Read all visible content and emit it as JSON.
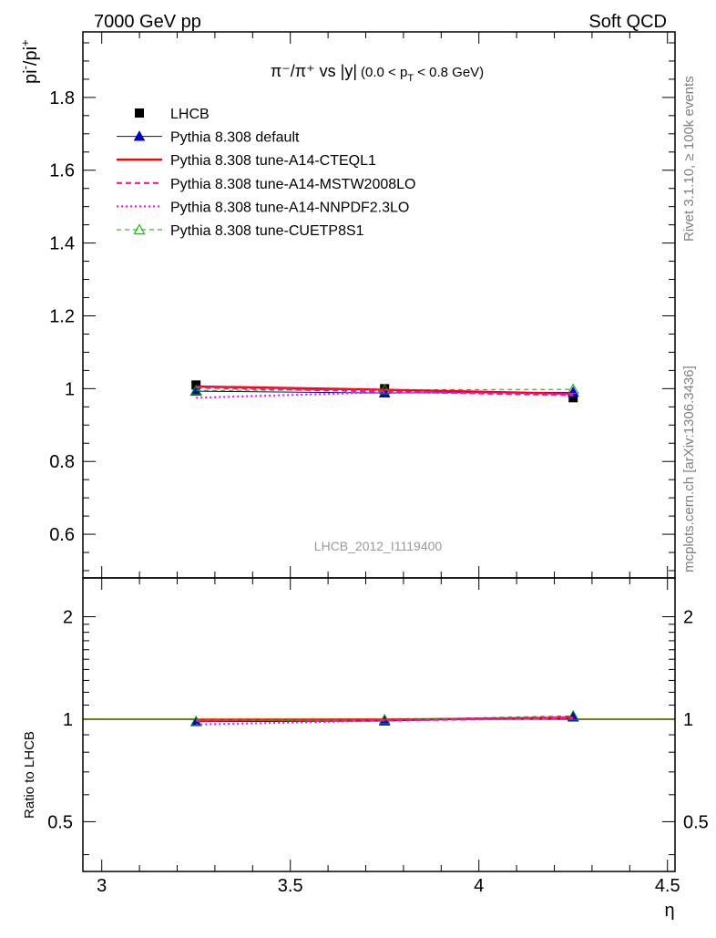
{
  "header": {
    "left": "7000 GeV pp",
    "right": "Soft QCD"
  },
  "side_labels": {
    "rivet": "Rivet 3.1.10, ≥ 100k events",
    "mcplots": "mcplots.cern.ch [arXiv:1306.3436]"
  },
  "chart_data": [
    {
      "type": "line",
      "panel": "main",
      "title": "π⁻/π⁺ vs |y|",
      "title_range": "(0.0 < p",
      "title_sub": "T",
      "title_range_end": " < 0.8 GeV)",
      "ylabel_main": "pi",
      "ylabel_sup1": "-",
      "ylabel_mid": "/pi",
      "ylabel_sup2": "+",
      "analysis_label": "LHCB_2012_I1119400",
      "xlim": [
        2.95,
        4.52
      ],
      "ylim": [
        0.48,
        1.98
      ],
      "yticks": [
        {
          "value": 0.6,
          "label": "0.6"
        },
        {
          "value": 0.8,
          "label": "0.8"
        },
        {
          "value": 1.0,
          "label": "1"
        },
        {
          "value": 1.2,
          "label": "1.2"
        },
        {
          "value": 1.4,
          "label": "1.4"
        },
        {
          "value": 1.6,
          "label": "1.6"
        },
        {
          "value": 1.8,
          "label": "1.8"
        }
      ],
      "legend_position": "top-left",
      "data": {
        "name": "LHCB",
        "x": [
          3.25,
          3.75,
          4.25
        ],
        "y": [
          1.01,
          1.0,
          0.975
        ]
      },
      "series": [
        {
          "name": "Pythia 8.308 default",
          "color": "#0000cc",
          "style": "solid",
          "width": 1,
          "marker": "triangle-filled",
          "x": [
            3.25,
            3.75,
            4.25
          ],
          "y": [
            0.993,
            0.988,
            0.99
          ]
        },
        {
          "name": "Pythia 8.308 tune-A14-CTEQL1",
          "color": "#ff0000",
          "style": "solid",
          "width": 2.4,
          "marker": "none",
          "x": [
            3.25,
            3.75,
            4.25
          ],
          "y": [
            1.006,
            0.997,
            0.986
          ]
        },
        {
          "name": "Pythia 8.308 tune-A14-MSTW2008LO",
          "color": "#ff1493",
          "style": "dashed",
          "width": 2.2,
          "marker": "none",
          "x": [
            3.25,
            3.75,
            4.25
          ],
          "y": [
            1.003,
            0.992,
            0.982
          ]
        },
        {
          "name": "Pythia 8.308 tune-A14-NNPDF2.3LO",
          "color": "#ff00ff",
          "style": "dotted",
          "width": 2,
          "marker": "none",
          "x": [
            3.25,
            3.75,
            4.25
          ],
          "y": [
            0.975,
            0.99,
            0.985
          ]
        },
        {
          "name": "Pythia 8.308 tune-CUETP8S1",
          "color": "#00aa00",
          "style": "dashed-thin",
          "width": 1,
          "marker": "triangle-open",
          "x": [
            3.25,
            3.75,
            4.25
          ],
          "y": [
            0.995,
            0.997,
            0.998
          ]
        }
      ]
    },
    {
      "type": "line",
      "panel": "ratio",
      "ylabel": "Ratio to LHCB",
      "xlabel": "η",
      "xlim": [
        2.95,
        4.52
      ],
      "xticks": [
        {
          "value": 3.0,
          "label": "3"
        },
        {
          "value": 3.5,
          "label": "3.5"
        },
        {
          "value": 4.0,
          "label": "4"
        },
        {
          "value": 4.5,
          "label": "4.5"
        }
      ],
      "ylim": [
        0.3571,
        2.6
      ],
      "log_scale": true,
      "yticks": [
        {
          "value": 0.5,
          "label": "0.5"
        },
        {
          "value": 1.0,
          "label": "1"
        },
        {
          "value": 2.0,
          "label": "2"
        }
      ],
      "band_color": "#ccff33",
      "series": [
        {
          "name": "Pythia 8.308 default",
          "color": "#0000cc",
          "style": "solid",
          "width": 1,
          "marker": "triangle-filled",
          "x": [
            3.25,
            3.75,
            4.25
          ],
          "y": [
            0.983,
            0.988,
            1.015
          ]
        },
        {
          "name": "Pythia 8.308 tune-A14-CTEQL1",
          "color": "#ff0000",
          "style": "solid",
          "width": 2.4,
          "marker": "none",
          "x": [
            3.25,
            3.75,
            4.25
          ],
          "y": [
            0.996,
            0.997,
            1.011
          ]
        },
        {
          "name": "Pythia 8.308 tune-A14-MSTW2008LO",
          "color": "#ff1493",
          "style": "dashed",
          "width": 2.2,
          "marker": "none",
          "x": [
            3.25,
            3.75,
            4.25
          ],
          "y": [
            0.993,
            0.992,
            1.007
          ]
        },
        {
          "name": "Pythia 8.308 tune-A14-NNPDF2.3LO",
          "color": "#ff00ff",
          "style": "dotted",
          "width": 2,
          "marker": "none",
          "x": [
            3.25,
            3.75,
            4.25
          ],
          "y": [
            0.965,
            0.99,
            1.01
          ]
        },
        {
          "name": "Pythia 8.308 tune-CUETP8S1",
          "color": "#00aa00",
          "style": "dashed-thin",
          "width": 1,
          "marker": "triangle-open",
          "x": [
            3.25,
            3.75,
            4.25
          ],
          "y": [
            0.985,
            0.997,
            1.023
          ]
        }
      ]
    }
  ]
}
